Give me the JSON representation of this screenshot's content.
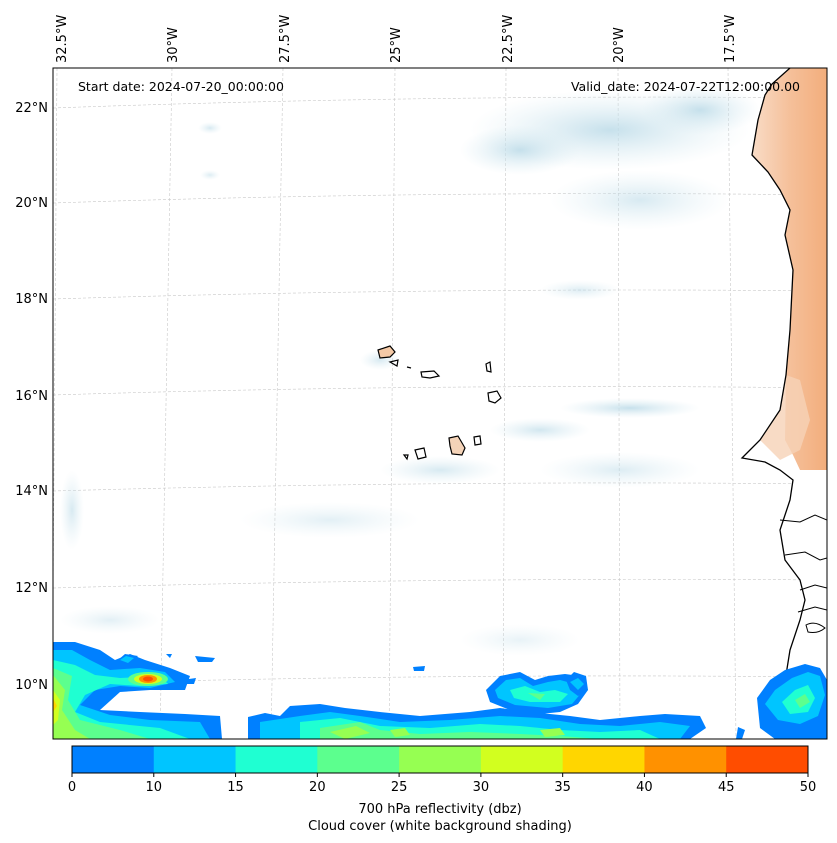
{
  "map": {
    "start_date": "Start date: 2024-07-20_00:00:00",
    "valid_date": "Valid_date: 2024-07-22T12:00:00.00",
    "lon_labels": [
      "32.5°W",
      "30°W",
      "27.5°W",
      "25°W",
      "22.5°W",
      "20°W",
      "17.5°W"
    ],
    "lat_labels": [
      "22°N",
      "20°N",
      "18°N",
      "16°N",
      "14°N",
      "12°N",
      "10°N"
    ],
    "region": "Cape Verde / West African coast"
  },
  "colorbar": {
    "ticks": [
      "0",
      "10",
      "15",
      "20",
      "25",
      "30",
      "35",
      "40",
      "45",
      "50"
    ],
    "colors": [
      "#0080ff",
      "#00c5ff",
      "#1fffd2",
      "#5cff8e",
      "#96ff52",
      "#d2ff1f",
      "#ffd600",
      "#ff9100",
      "#ff4d00"
    ],
    "label_line1": "700 hPa reflectivity (dbz)",
    "label_line2": "Cloud cover (white background shading)"
  }
}
